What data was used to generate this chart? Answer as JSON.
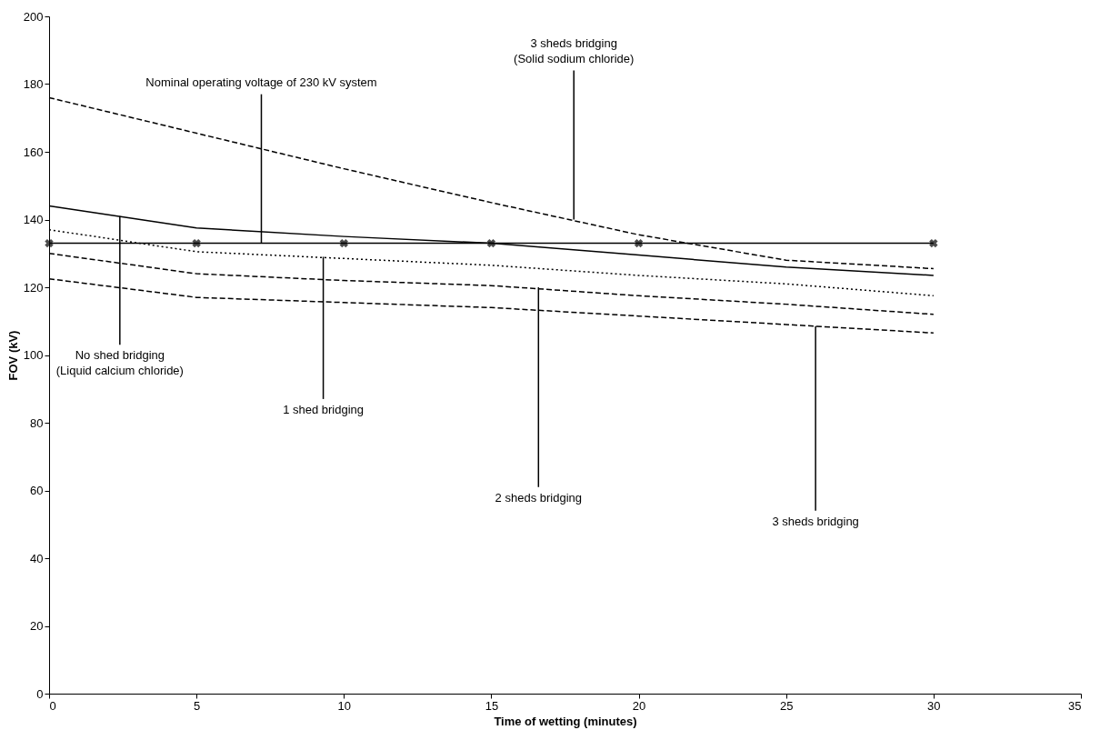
{
  "chart_data": {
    "type": "line",
    "xlabel": "Time of wetting (minutes)",
    "ylabel": "FOV (kV)",
    "xlim": [
      0,
      35
    ],
    "xticks": [
      0,
      5,
      10,
      15,
      20,
      25,
      30,
      35
    ],
    "ylim": [
      0,
      200
    ],
    "yticks": [
      0,
      20,
      40,
      60,
      80,
      100,
      120,
      140,
      160,
      180,
      200
    ],
    "grid": false,
    "x": [
      0,
      5,
      10,
      15,
      20,
      25,
      30
    ],
    "series": [
      {
        "color": "#000000",
        "line_style": "dashed",
        "marker": "none",
        "values": [
          176,
          165.5,
          155,
          145,
          135.5,
          128,
          125.5
        ]
      },
      {
        "color": "#000000",
        "line_style": "solid",
        "marker": "none",
        "values": [
          144,
          137.5,
          135,
          133,
          129.5,
          126,
          123.5
        ]
      },
      {
        "color": "#000000",
        "line_style": "dotted",
        "marker": "none",
        "values": [
          137,
          130.5,
          128.5,
          126.5,
          123.5,
          121,
          117.5
        ]
      },
      {
        "color": "#000000",
        "line_style": "dashed",
        "marker": "none",
        "values": [
          130,
          124,
          122,
          120.5,
          117.5,
          115,
          112
        ]
      },
      {
        "color": "#000000",
        "line_style": "dashed",
        "marker": "none",
        "values": [
          122.5,
          117,
          115.5,
          114,
          111.5,
          109,
          106.5
        ]
      },
      {
        "color": "#000000",
        "line_style": "solid",
        "marker": "cross",
        "x": [
          0,
          5,
          10,
          15,
          20,
          30
        ],
        "values": [
          133,
          133,
          133,
          133,
          133,
          133
        ]
      }
    ],
    "annotations": [
      {
        "text": "Nominal operating voltage of 230 kV system",
        "x": 7.2,
        "y": 133
      },
      {
        "text": "3 sheds bridging\n(Solid sodium chloride)",
        "x": 17.8,
        "y": 140
      },
      {
        "text": "No shed bridging\n(Liquid calcium chloride)",
        "x": 2.4,
        "y": 141
      },
      {
        "text": "1 shed bridging",
        "x": 9.3,
        "y": 129
      },
      {
        "text": "2 sheds bridging",
        "x": 16.6,
        "y": 120
      },
      {
        "text": "3 sheds bridging",
        "x": 26.0,
        "y": 108.5
      }
    ]
  }
}
